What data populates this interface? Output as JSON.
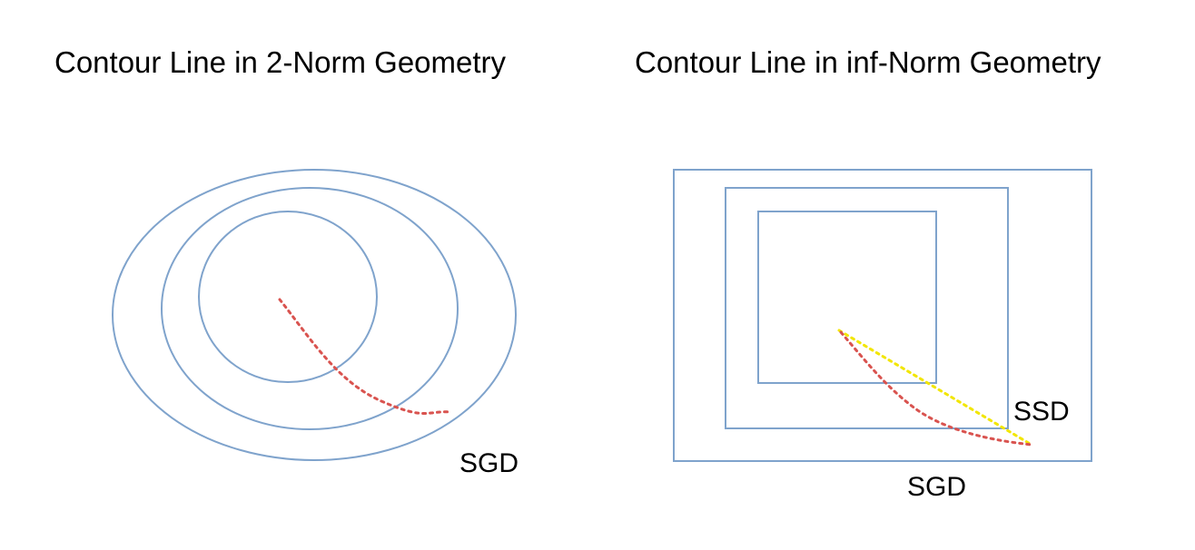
{
  "left_panel": {
    "title": "Contour Line in 2-Norm Geometry",
    "path_label": "SGD"
  },
  "right_panel": {
    "title": "Contour Line in inf-Norm Geometry",
    "ssd_label": "SSD",
    "sgd_label": "SGD"
  },
  "colors": {
    "contour": "#7fa3cc",
    "sgd_path": "#d9534f",
    "ssd_path": "#f2e600",
    "text": "#000000"
  }
}
